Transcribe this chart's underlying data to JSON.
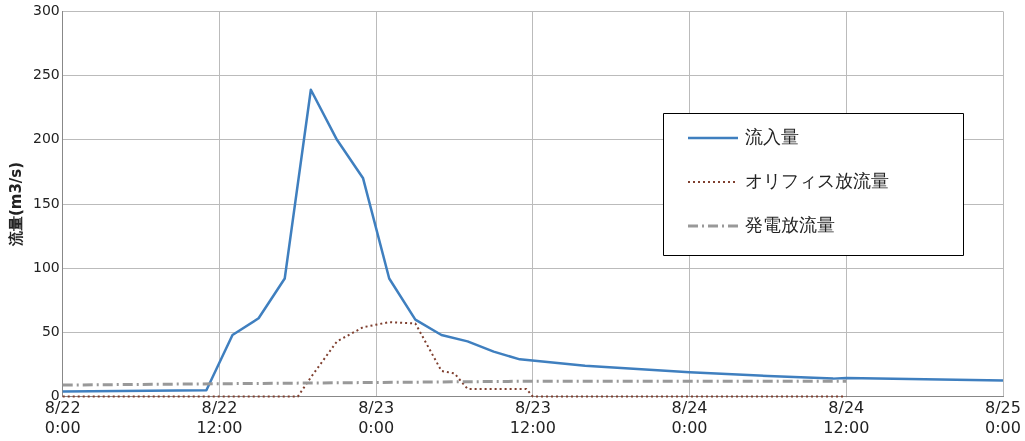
{
  "chart_data": {
    "type": "line",
    "ylabel": "流量(m3/s)",
    "xlim": [
      "--08-22T00:00",
      "--08-25T00:00"
    ],
    "xticks": [
      {
        "value": "--08-22T00:00",
        "label": "8/22 0:00"
      },
      {
        "value": "--08-22T12:00",
        "label": "8/22 12:00"
      },
      {
        "value": "--08-23T00:00",
        "label": "8/23 0:00"
      },
      {
        "value": "--08-23T12:00",
        "label": "8/23 12:00"
      },
      {
        "value": "--08-24T00:00",
        "label": "8/24 0:00"
      },
      {
        "value": "--08-24T12:00",
        "label": "8/24 12:00"
      },
      {
        "value": "--08-25T00:00",
        "label": "8/25 0:00"
      }
    ],
    "ylim": [
      0,
      300
    ],
    "yticks": [
      0,
      50,
      100,
      150,
      200,
      250,
      300
    ],
    "grid": true,
    "legend": "right",
    "marker": "none",
    "series": [
      {
        "name": "流入量",
        "color": "#3f7fbf",
        "line_style": "solid",
        "x": [
          "--08-22T00:00",
          "--08-22T11:00",
          "--08-22T13:00",
          "--08-22T15:00",
          "--08-22T17:00",
          "--08-22T19:00",
          "--08-22T21:00",
          "--08-22T23:00",
          "--08-23T01:00",
          "--08-23T03:00",
          "--08-23T05:00",
          "--08-23T07:00",
          "--08-23T09:00",
          "--08-23T11:00",
          "--08-23T16:00",
          "--08-24T00:00",
          "--08-24T06:00",
          "--08-24T11:00",
          "--08-24T12:00",
          "--08-25T00:00"
        ],
        "values": [
          4,
          5,
          48,
          61,
          92,
          239,
          200,
          170,
          92,
          60,
          48,
          43,
          35,
          29,
          24,
          19,
          16,
          14,
          14.5,
          12.5
        ]
      },
      {
        "name": "オリフィス放流量",
        "color": "#7f3f2f",
        "line_style": "dotted",
        "x": [
          "--08-22T00:00",
          "--08-22T18:00",
          "--08-22T19:00",
          "--08-22T21:00",
          "--08-22T23:00",
          "--08-23T01:00",
          "--08-23T03:00",
          "--08-23T05:00",
          "--08-23T06:00",
          "--08-23T07:00",
          "--08-23T11:30",
          "--08-23T12:00",
          "--08-24T12:00"
        ],
        "values": [
          0,
          0,
          15,
          43,
          54,
          58,
          57,
          20,
          18,
          6,
          6,
          0,
          0
        ]
      },
      {
        "name": "発電放流量",
        "color": "#999999",
        "line_style": "dashdot",
        "x": [
          "--08-22T00:00",
          "--08-22T12:00",
          "--08-23T00:00",
          "--08-23T12:00",
          "--08-24T00:00",
          "--08-24T12:00"
        ],
        "values": [
          9,
          10,
          11,
          12,
          12,
          12
        ]
      }
    ]
  }
}
